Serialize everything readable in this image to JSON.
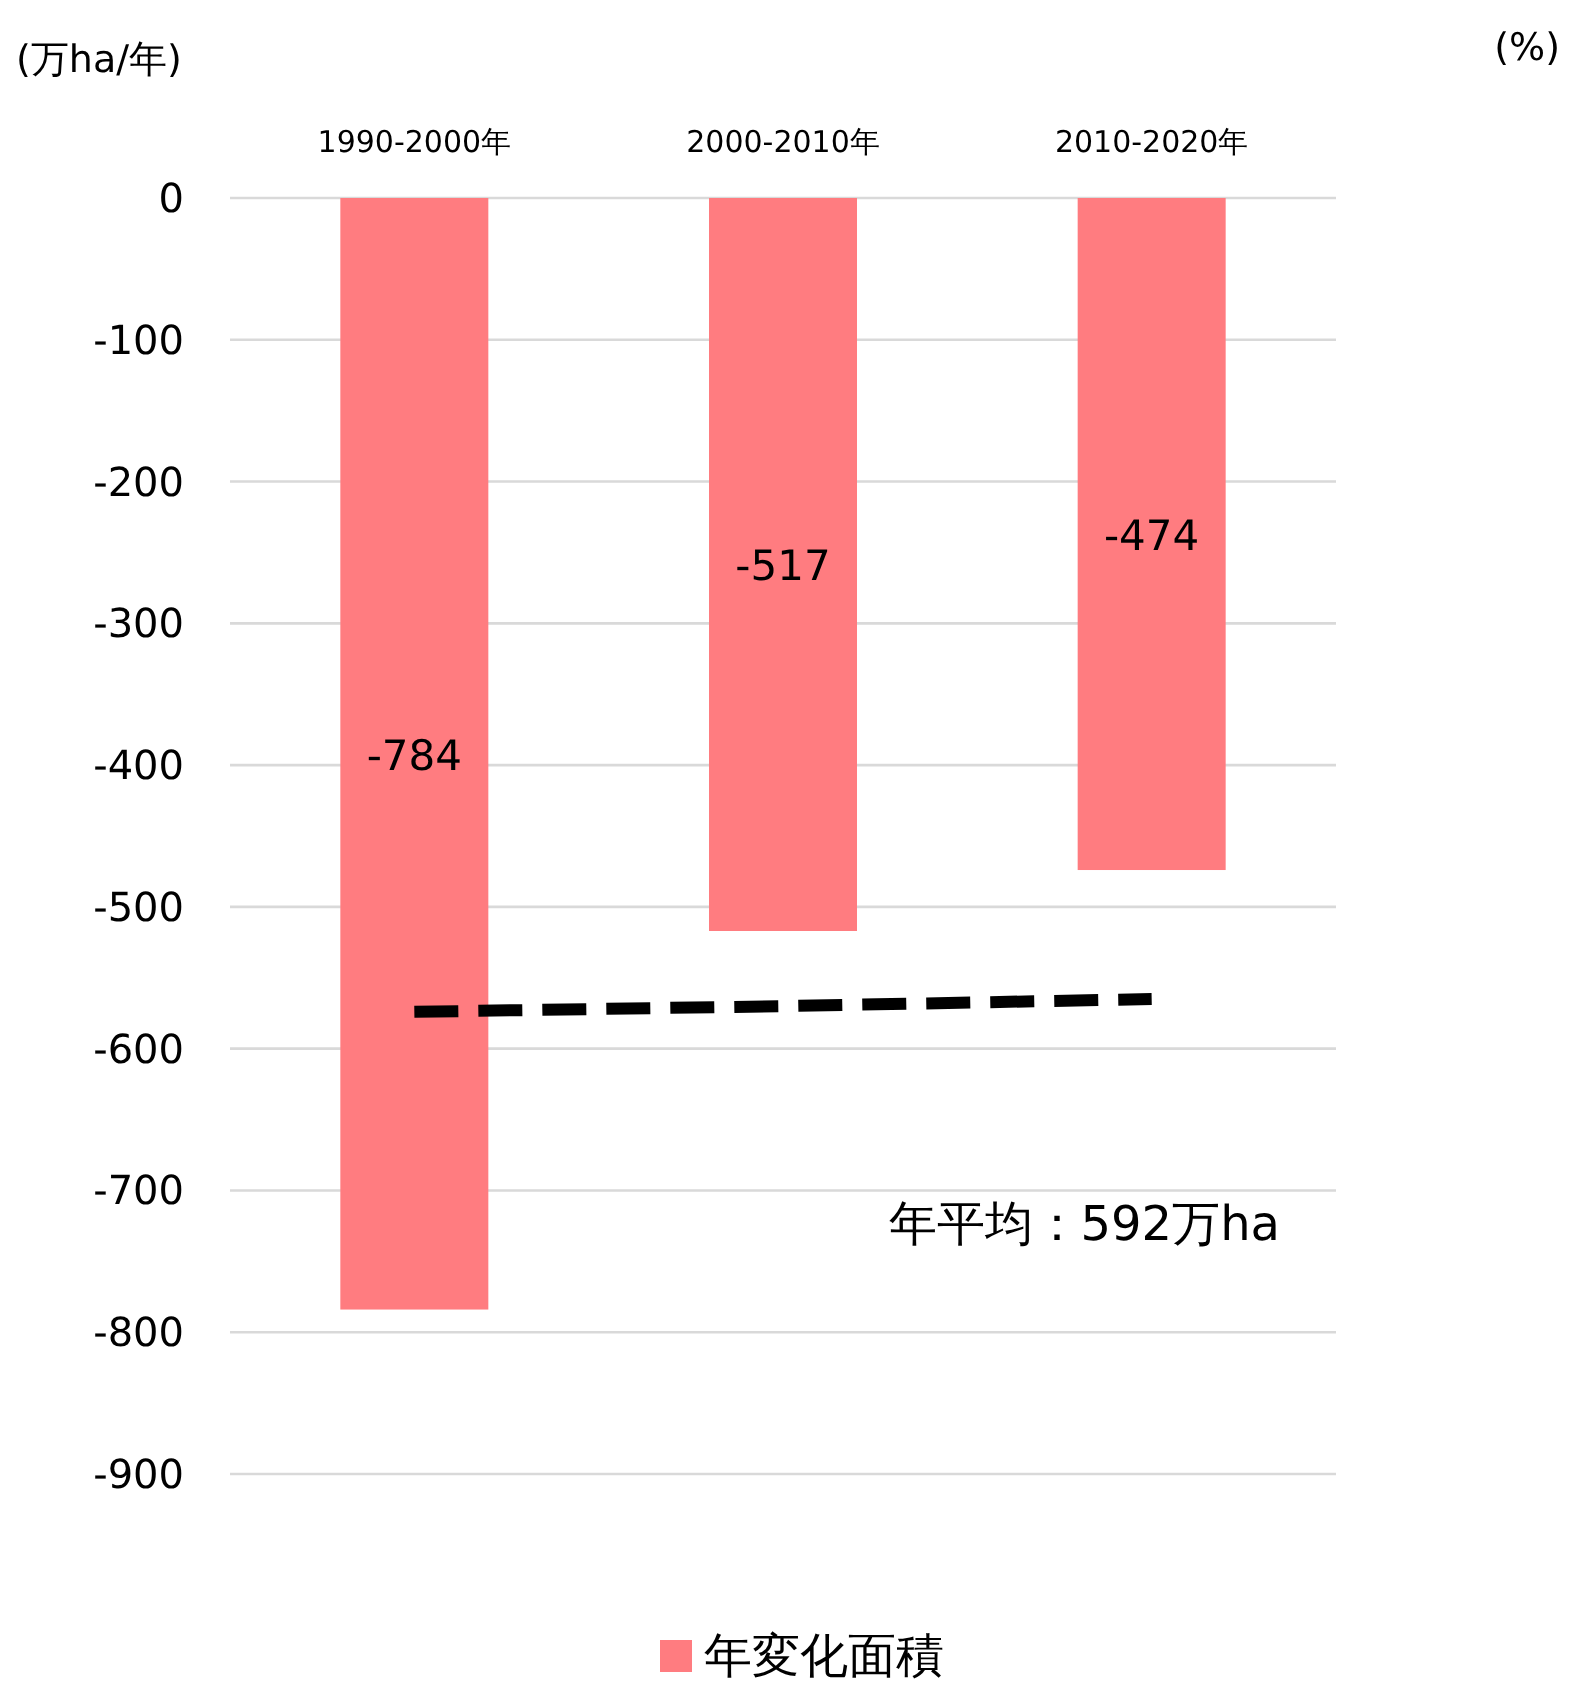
{
  "chart_data": {
    "type": "bar",
    "ylabel": "(万ha/年)",
    "y2label": "(%)",
    "categories": [
      "1990-2000年",
      "2000-2010年",
      "2010-2020年"
    ],
    "series": [
      {
        "name": "年変化面積",
        "color": "#ff7c80",
        "values": [
          -784,
          -517,
          -474
        ],
        "value_labels": [
          "-784",
          "-517",
          "-474"
        ]
      },
      {
        "type": "line",
        "color": "#000000",
        "line_style": "dashed",
        "values": [
          -574,
          -570,
          -565
        ]
      }
    ],
    "ylim": [
      -900,
      0
    ],
    "yticks": [
      0,
      -100,
      -200,
      -300,
      -400,
      -500,
      -600,
      -700,
      -800,
      -900
    ],
    "grid": "y",
    "legend": "bottom",
    "marker": "none",
    "annotations": [
      "年平均：592万ha"
    ]
  }
}
